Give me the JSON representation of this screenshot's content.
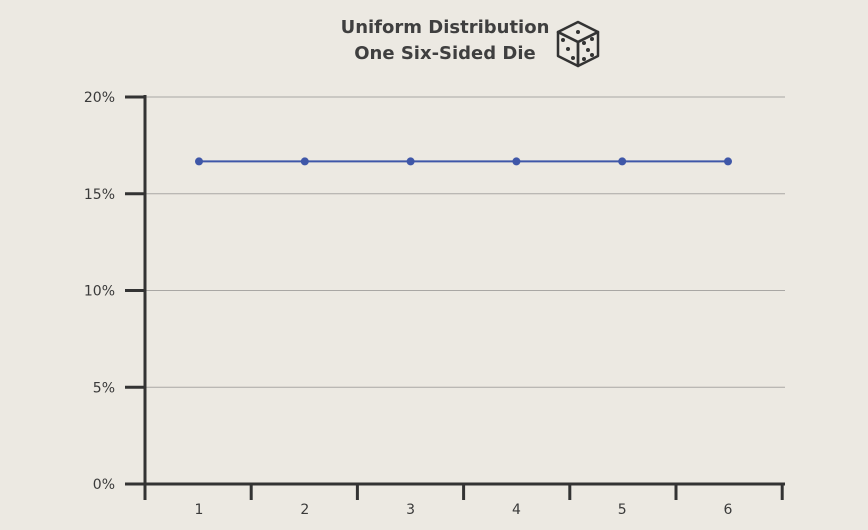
{
  "chart_data": {
    "type": "line",
    "title": "Uniform Distribution",
    "subtitle": "One Six-Sided Die",
    "title_icon": "dice-icon",
    "xlabel": "",
    "ylabel": "",
    "categories": [
      "1",
      "2",
      "3",
      "4",
      "5",
      "6"
    ],
    "series": [
      {
        "values": [
          16.67,
          16.67,
          16.67,
          16.67,
          16.67,
          16.67
        ]
      }
    ],
    "ylim": [
      0,
      20
    ],
    "yticks": [
      0,
      5,
      10,
      15,
      20
    ],
    "ytick_labels": [
      "0%",
      "5%",
      "10%",
      "15%",
      "20%"
    ],
    "grid": true,
    "legend": "none",
    "colors": {
      "line": "#3f57a8",
      "background": "#ece9e2",
      "axis": "#333333",
      "grid": "#a9a7a4"
    }
  }
}
